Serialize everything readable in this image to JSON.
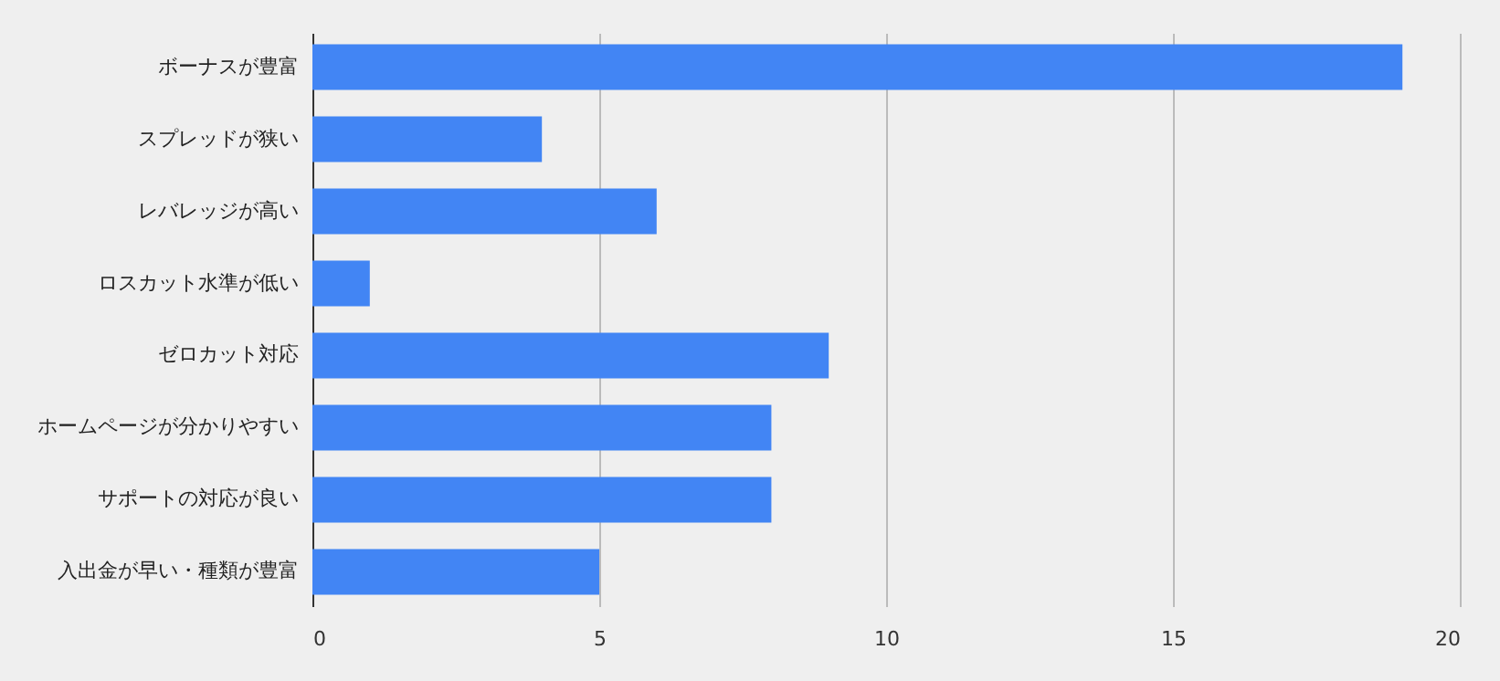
{
  "chart_data": {
    "type": "bar",
    "orientation": "horizontal",
    "categories": [
      "ボーナスが豊富",
      "スプレッドが狭い",
      "レバレッジが高い",
      "ロスカット水準が低い",
      "ゼロカット対応",
      "ホームページが分かりやすい",
      "サポートの対応が良い",
      "入出金が早い・種類が豊富"
    ],
    "values": [
      19,
      4,
      6,
      1,
      9,
      8,
      8,
      5
    ],
    "color": "#4285f4",
    "xlim": [
      0,
      20
    ],
    "xticks": [
      0,
      5,
      10,
      15,
      20
    ],
    "grid": "x"
  }
}
